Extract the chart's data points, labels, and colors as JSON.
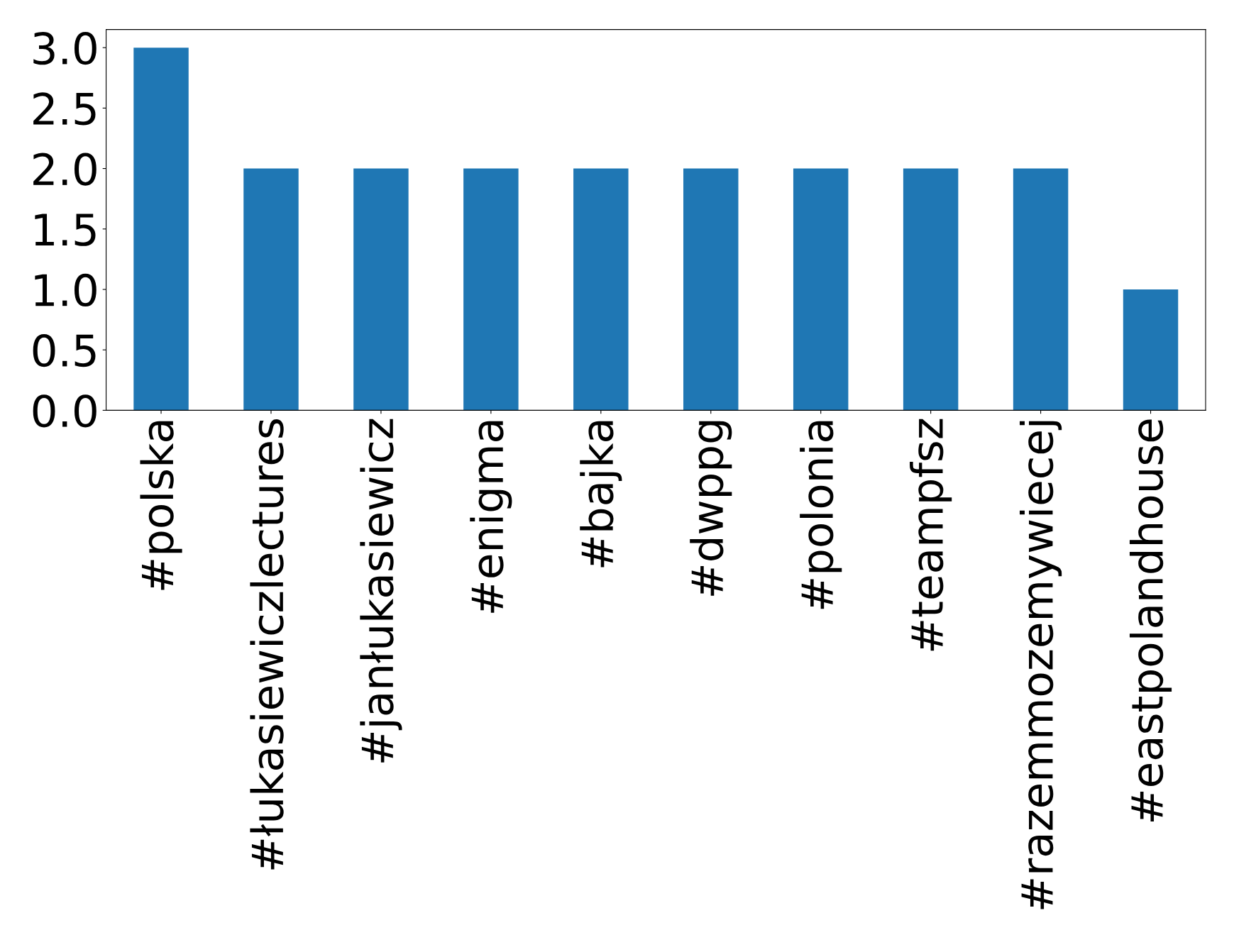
{
  "chart_data": {
    "type": "bar",
    "categories": [
      "#polska",
      "#łukasiewiczlectures",
      "#janłukasiewicz",
      "#enigma",
      "#bajka",
      "#dwppg",
      "#polonia",
      "#teampfsz",
      "#razemmozemywiecej",
      "#eastpolandhouse"
    ],
    "values": [
      3,
      2,
      2,
      2,
      2,
      2,
      2,
      2,
      2,
      1
    ],
    "color": "#1f77b4",
    "ylim": [
      0,
      3.15
    ],
    "yticks": [
      {
        "value": 0,
        "label": "0.0"
      },
      {
        "value": 0.5,
        "label": "0.5"
      },
      {
        "value": 1,
        "label": "1.0"
      },
      {
        "value": 1.5,
        "label": "1.5"
      },
      {
        "value": 2,
        "label": "2.0"
      },
      {
        "value": 2.5,
        "label": "2.5"
      },
      {
        "value": 3,
        "label": "3.0"
      }
    ],
    "grid": false,
    "legend": false
  }
}
